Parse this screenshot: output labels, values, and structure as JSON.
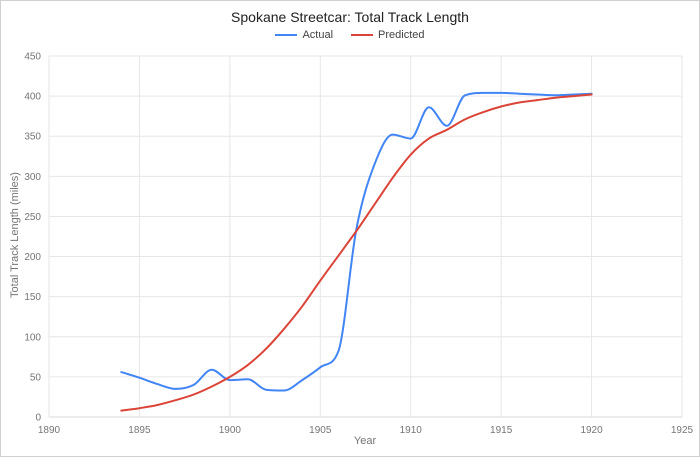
{
  "chart_data": {
    "type": "line",
    "title": "Spokane Streetcar: Total Track Length",
    "xlabel": "Year",
    "ylabel": "Total Track Length (miles)",
    "xlim": [
      1890,
      1925
    ],
    "ylim": [
      0,
      450
    ],
    "x_ticks": [
      1890,
      1895,
      1900,
      1905,
      1910,
      1915,
      1920,
      1925
    ],
    "y_ticks": [
      0,
      50,
      100,
      150,
      200,
      250,
      300,
      350,
      400,
      450
    ],
    "grid": true,
    "legend_position": "top",
    "line_width": 2,
    "colors": {
      "actual": "#4285f4",
      "predicted": "#db4437",
      "gridline": "#e6e6e6",
      "baseline": "#d9d9d9",
      "tick_text": "#757575",
      "axis_title_text": "#757575",
      "title_text": "#212121",
      "legend_text": "#424242",
      "frame_border": "#d0d0d0"
    },
    "x": [
      1894,
      1895,
      1896,
      1897,
      1898,
      1899,
      1900,
      1901,
      1902,
      1903,
      1904,
      1905,
      1906,
      1907,
      1908,
      1909,
      1910,
      1911,
      1912,
      1913,
      1914,
      1915,
      1916,
      1917,
      1918,
      1919,
      1920
    ],
    "series": [
      {
        "name": "Actual",
        "color": "#4285f4",
        "values": [
          56,
          49,
          41,
          35,
          40,
          59,
          46,
          47,
          34,
          33,
          46,
          62,
          82,
          235,
          315,
          352,
          347,
          386,
          363,
          401,
          404,
          404,
          403,
          402,
          401,
          402,
          403
        ]
      },
      {
        "name": "Predicted",
        "color": "#db4437",
        "values": [
          8,
          11,
          15,
          21,
          28,
          38,
          50,
          65,
          85,
          110,
          138,
          170,
          201,
          232,
          265,
          298,
          327,
          347,
          358,
          371,
          380,
          387,
          392,
          395,
          398,
          400,
          402
        ]
      }
    ]
  }
}
